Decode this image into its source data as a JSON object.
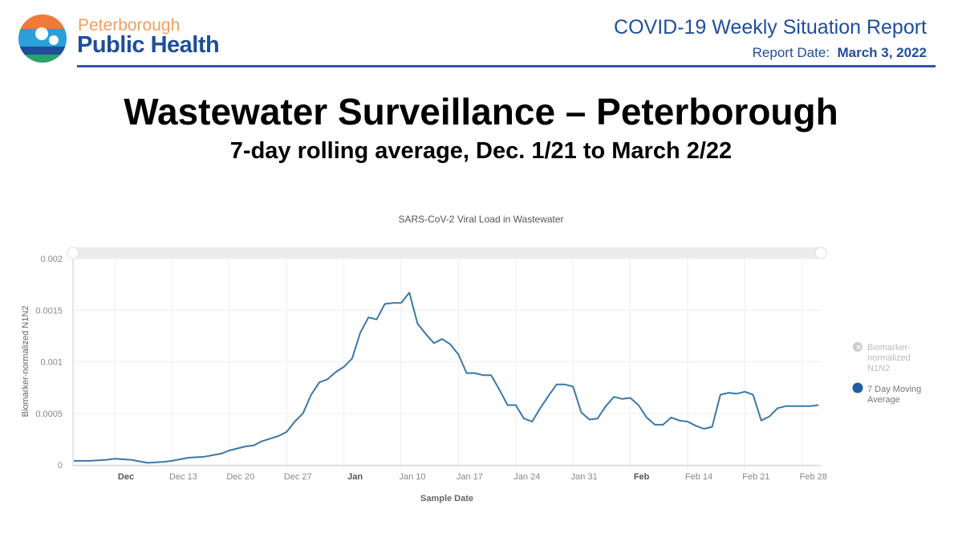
{
  "header": {
    "logo_line1": "Peterborough",
    "logo_line2": "Public Health",
    "report_title": "COVID-19 Weekly Situation Report",
    "report_date_label": "Report Date:",
    "report_date": "March 3, 2022"
  },
  "title": "Wastewater Surveillance – Peterborough",
  "subtitle": "7-day rolling average, Dec. 1/21 to March 2/22",
  "chart_data": {
    "type": "line",
    "title": "SARS-CoV-2 Viral Load in Wastewater",
    "xlabel": "Sample Date",
    "ylabel": "Biomarker-normalized N1N2",
    "ylim": [
      0,
      0.002
    ],
    "yticks": [
      "0",
      "0.0005",
      "0.001",
      "0.0015",
      "0.002"
    ],
    "xticks": [
      {
        "date": "2021-12-06",
        "label": "Dec",
        "bold": true
      },
      {
        "date": "2021-12-13",
        "label": "Dec 13"
      },
      {
        "date": "2021-12-20",
        "label": "Dec 20"
      },
      {
        "date": "2021-12-27",
        "label": "Dec 27"
      },
      {
        "date": "2022-01-03",
        "label": "Jan",
        "bold": true
      },
      {
        "date": "2022-01-10",
        "label": "Jan 10"
      },
      {
        "date": "2022-01-17",
        "label": "Jan 17"
      },
      {
        "date": "2022-01-24",
        "label": "Jan 24"
      },
      {
        "date": "2022-01-31",
        "label": "Jan 31"
      },
      {
        "date": "2022-02-07",
        "label": "Feb",
        "bold": true
      },
      {
        "date": "2022-02-14",
        "label": "Feb 14"
      },
      {
        "date": "2022-02-21",
        "label": "Feb 21"
      },
      {
        "date": "2022-02-28",
        "label": "Feb 28"
      }
    ],
    "grid": true,
    "legend_position": "right",
    "legend": [
      {
        "name": "Biomarker-normalized N1N2",
        "hidden": true,
        "color": "#bbbbbb"
      },
      {
        "name": "7 Day Moving Average",
        "color": "#1f5fa0"
      }
    ],
    "series": [
      {
        "name": "7 Day Moving Average",
        "color": "#3a78a8",
        "points": [
          [
            "2021-12-01",
            4e-05
          ],
          [
            "2021-12-03",
            4e-05
          ],
          [
            "2021-12-05",
            5e-05
          ],
          [
            "2021-12-06",
            6e-05
          ],
          [
            "2021-12-08",
            5e-05
          ],
          [
            "2021-12-10",
            2e-05
          ],
          [
            "2021-12-12",
            3e-05
          ],
          [
            "2021-12-13",
            4e-05
          ],
          [
            "2021-12-15",
            7e-05
          ],
          [
            "2021-12-17",
            8e-05
          ],
          [
            "2021-12-19",
            0.00011
          ],
          [
            "2021-12-20",
            0.00014
          ],
          [
            "2021-12-22",
            0.00018
          ],
          [
            "2021-12-23",
            0.00019
          ],
          [
            "2021-12-24",
            0.00023
          ],
          [
            "2021-12-26",
            0.00028
          ],
          [
            "2021-12-27",
            0.00032
          ],
          [
            "2021-12-28",
            0.00042
          ],
          [
            "2021-12-29",
            0.0005
          ],
          [
            "2021-12-30",
            0.00068
          ],
          [
            "2021-12-31",
            0.0008
          ],
          [
            "2022-01-01",
            0.00083
          ],
          [
            "2022-01-02",
            0.0009
          ],
          [
            "2022-01-03",
            0.00095
          ],
          [
            "2022-01-04",
            0.00103
          ],
          [
            "2022-01-05",
            0.00128
          ],
          [
            "2022-01-06",
            0.00143
          ],
          [
            "2022-01-07",
            0.00141
          ],
          [
            "2022-01-08",
            0.00156
          ],
          [
            "2022-01-09",
            0.00157
          ],
          [
            "2022-01-10",
            0.00157
          ],
          [
            "2022-01-11",
            0.00167
          ],
          [
            "2022-01-12",
            0.00137
          ],
          [
            "2022-01-13",
            0.00127
          ],
          [
            "2022-01-14",
            0.00118
          ],
          [
            "2022-01-15",
            0.00122
          ],
          [
            "2022-01-16",
            0.00117
          ],
          [
            "2022-01-17",
            0.00107
          ],
          [
            "2022-01-18",
            0.00089
          ],
          [
            "2022-01-19",
            0.00089
          ],
          [
            "2022-01-20",
            0.00087
          ],
          [
            "2022-01-21",
            0.00087
          ],
          [
            "2022-01-22",
            0.00073
          ],
          [
            "2022-01-23",
            0.00058
          ],
          [
            "2022-01-24",
            0.00058
          ],
          [
            "2022-01-25",
            0.00045
          ],
          [
            "2022-01-26",
            0.00042
          ],
          [
            "2022-01-27",
            0.00055
          ],
          [
            "2022-01-28",
            0.00067
          ],
          [
            "2022-01-29",
            0.00078
          ],
          [
            "2022-01-30",
            0.00078
          ],
          [
            "2022-01-31",
            0.00076
          ],
          [
            "2022-02-01",
            0.00051
          ],
          [
            "2022-02-02",
            0.00044
          ],
          [
            "2022-02-03",
            0.00045
          ],
          [
            "2022-02-04",
            0.00057
          ],
          [
            "2022-02-05",
            0.00066
          ],
          [
            "2022-02-06",
            0.00064
          ],
          [
            "2022-02-07",
            0.00065
          ],
          [
            "2022-02-08",
            0.00058
          ],
          [
            "2022-02-09",
            0.00046
          ],
          [
            "2022-02-10",
            0.00039
          ],
          [
            "2022-02-11",
            0.00039
          ],
          [
            "2022-02-12",
            0.00046
          ],
          [
            "2022-02-13",
            0.00043
          ],
          [
            "2022-02-14",
            0.00042
          ],
          [
            "2022-02-15",
            0.00038
          ],
          [
            "2022-02-16",
            0.00035
          ],
          [
            "2022-02-17",
            0.00037
          ],
          [
            "2022-02-18",
            0.00068
          ],
          [
            "2022-02-19",
            0.0007
          ],
          [
            "2022-02-20",
            0.00069
          ],
          [
            "2022-02-21",
            0.00071
          ],
          [
            "2022-02-22",
            0.00068
          ],
          [
            "2022-02-23",
            0.00043
          ],
          [
            "2022-02-24",
            0.00047
          ],
          [
            "2022-02-25",
            0.00055
          ],
          [
            "2022-02-26",
            0.00057
          ],
          [
            "2022-02-27",
            0.00057
          ],
          [
            "2022-02-28",
            0.00057
          ],
          [
            "2022-03-01",
            0.00057
          ],
          [
            "2022-03-02",
            0.00058
          ]
        ]
      }
    ]
  }
}
